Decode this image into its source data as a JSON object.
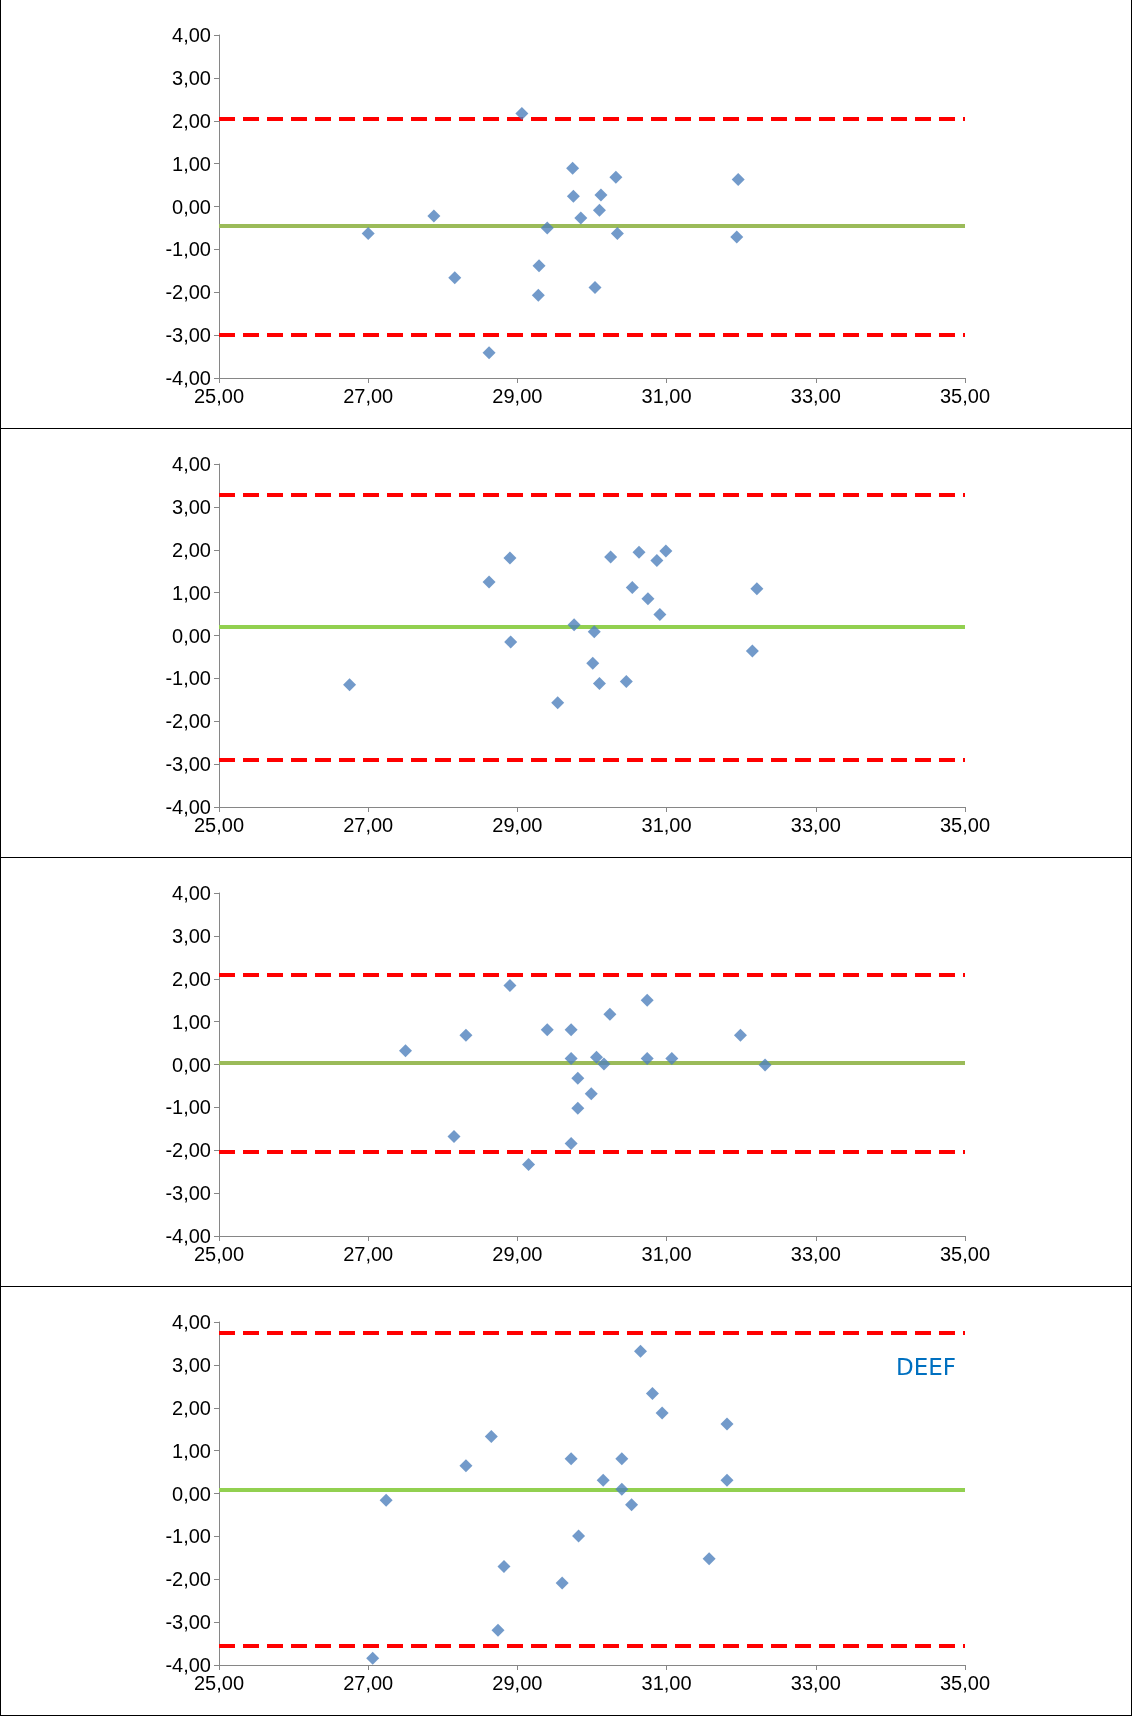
{
  "chart_data": [
    {
      "type": "scatter",
      "marker": "diamond",
      "xlim": [
        25,
        35
      ],
      "xticks": [
        {
          "value": 25,
          "label": "25,00"
        },
        {
          "value": 27,
          "label": "27,00"
        },
        {
          "value": 29,
          "label": "29,00"
        },
        {
          "value": 31,
          "label": "31,00"
        },
        {
          "value": 33,
          "label": "33,00"
        },
        {
          "value": 35,
          "label": "35,00"
        }
      ],
      "ylim": [
        -4,
        4
      ],
      "yticks": [
        {
          "value": -4,
          "label": "-4,00"
        },
        {
          "value": -3,
          "label": "-3,00"
        },
        {
          "value": -2,
          "label": "-2,00"
        },
        {
          "value": -1,
          "label": "-1,00"
        },
        {
          "value": 0,
          "label": "0,00"
        },
        {
          "value": 1,
          "label": "1,00"
        },
        {
          "value": 2,
          "label": "2,00"
        },
        {
          "value": 3,
          "label": "3,00"
        },
        {
          "value": 4,
          "label": "4,00"
        }
      ],
      "series": [
        {
          "color": "#4f81bd",
          "x": [
            27.0,
            27.88,
            28.16,
            28.62,
            29.06,
            29.29,
            29.28,
            29.4,
            29.74,
            29.75,
            29.85,
            30.04,
            30.1,
            30.12,
            30.32,
            30.34,
            31.96,
            31.94
          ],
          "values": [
            -0.63,
            -0.22,
            -1.66,
            -3.41,
            2.17,
            -1.38,
            -2.07,
            -0.5,
            0.89,
            0.24,
            -0.27,
            -1.89,
            -0.09,
            0.27,
            0.68,
            -0.63,
            0.63,
            -0.71
          ]
        }
      ],
      "ref_lines": [
        {
          "axis": "y",
          "value": 2.04,
          "color": "#ff0000",
          "line_style": "dashed"
        },
        {
          "axis": "y",
          "value": -0.46,
          "color": "#9bbb59",
          "line_style": "solid"
        },
        {
          "axis": "y",
          "value": -3.0,
          "color": "#ff0000",
          "line_style": "dashed"
        }
      ]
    },
    {
      "type": "scatter",
      "marker": "diamond",
      "xlim": [
        25,
        35
      ],
      "xticks": [
        {
          "value": 25,
          "label": "25,00"
        },
        {
          "value": 27,
          "label": "27,00"
        },
        {
          "value": 29,
          "label": "29,00"
        },
        {
          "value": 31,
          "label": "31,00"
        },
        {
          "value": 33,
          "label": "33,00"
        },
        {
          "value": 35,
          "label": "35,00"
        }
      ],
      "ylim": [
        -4,
        4
      ],
      "yticks": [
        {
          "value": -4,
          "label": "-4,00"
        },
        {
          "value": -3,
          "label": "-3,00"
        },
        {
          "value": -2,
          "label": "-2,00"
        },
        {
          "value": -1,
          "label": "-1,00"
        },
        {
          "value": 0,
          "label": "0,00"
        },
        {
          "value": 1,
          "label": "1,00"
        },
        {
          "value": 2,
          "label": "2,00"
        },
        {
          "value": 3,
          "label": "3,00"
        },
        {
          "value": 4,
          "label": "4,00"
        }
      ],
      "series": [
        {
          "color": "#4f81bd",
          "x": [
            26.75,
            28.62,
            28.9,
            28.91,
            29.54,
            29.76,
            30.03,
            30.01,
            30.1,
            30.25,
            30.46,
            30.54,
            30.63,
            30.75,
            30.87,
            30.91,
            30.99,
            32.15,
            32.21
          ],
          "values": [
            -1.15,
            1.25,
            1.81,
            -0.15,
            -1.57,
            0.25,
            0.09,
            -0.65,
            -1.12,
            1.83,
            -1.07,
            1.12,
            1.94,
            0.86,
            1.75,
            0.49,
            1.97,
            -0.36,
            1.09
          ]
        }
      ],
      "ref_lines": [
        {
          "axis": "y",
          "value": 3.28,
          "color": "#ff0000",
          "line_style": "dashed"
        },
        {
          "axis": "y",
          "value": 0.2,
          "color": "#92d050",
          "line_style": "solid"
        },
        {
          "axis": "y",
          "value": -2.89,
          "color": "#ff0000",
          "line_style": "dashed"
        }
      ]
    },
    {
      "type": "scatter",
      "marker": "diamond",
      "xlim": [
        25,
        35
      ],
      "xticks": [
        {
          "value": 25,
          "label": "25,00"
        },
        {
          "value": 27,
          "label": "27,00"
        },
        {
          "value": 29,
          "label": "29,00"
        },
        {
          "value": 31,
          "label": "31,00"
        },
        {
          "value": 33,
          "label": "33,00"
        },
        {
          "value": 35,
          "label": "35,00"
        }
      ],
      "ylim": [
        -4,
        4
      ],
      "yticks": [
        {
          "value": -4,
          "label": "-4,00"
        },
        {
          "value": -3,
          "label": "-3,00"
        },
        {
          "value": -2,
          "label": "-2,00"
        },
        {
          "value": -1,
          "label": "-1,00"
        },
        {
          "value": 0,
          "label": "0,00"
        },
        {
          "value": 1,
          "label": "1,00"
        },
        {
          "value": 2,
          "label": "2,00"
        },
        {
          "value": 3,
          "label": "3,00"
        },
        {
          "value": 4,
          "label": "4,00"
        }
      ],
      "series": [
        {
          "color": "#4f81bd",
          "x": [
            27.5,
            28.31,
            28.15,
            28.9,
            29.15,
            29.4,
            29.72,
            29.72,
            29.72,
            29.81,
            29.81,
            29.99,
            30.06,
            30.16,
            30.24,
            30.74,
            30.74,
            31.07,
            31.99,
            32.32
          ],
          "values": [
            0.32,
            0.68,
            -1.68,
            1.84,
            -2.33,
            0.81,
            0.81,
            0.14,
            -1.84,
            -0.32,
            -1.02,
            -0.68,
            0.17,
            0.01,
            1.17,
            1.5,
            0.14,
            0.14,
            0.68,
            -0.01
          ]
        }
      ],
      "ref_lines": [
        {
          "axis": "y",
          "value": 2.1,
          "color": "#ff0000",
          "line_style": "dashed"
        },
        {
          "axis": "y",
          "value": 0.04,
          "color": "#9bbb59",
          "line_style": "solid"
        },
        {
          "axis": "y",
          "value": -2.04,
          "color": "#ff0000",
          "line_style": "dashed"
        }
      ]
    },
    {
      "type": "scatter",
      "marker": "diamond",
      "annotations": [
        "DEEF"
      ],
      "xlim": [
        25,
        35
      ],
      "xticks": [
        {
          "value": 25,
          "label": "25,00"
        },
        {
          "value": 27,
          "label": "27,00"
        },
        {
          "value": 29,
          "label": "29,00"
        },
        {
          "value": 31,
          "label": "31,00"
        },
        {
          "value": 33,
          "label": "33,00"
        },
        {
          "value": 35,
          "label": "35,00"
        }
      ],
      "ylim": [
        -4,
        4
      ],
      "yticks": [
        {
          "value": -4,
          "label": "-4,00"
        },
        {
          "value": -3,
          "label": "-3,00"
        },
        {
          "value": -2,
          "label": "-2,00"
        },
        {
          "value": -1,
          "label": "-1,00"
        },
        {
          "value": 0,
          "label": "0,00"
        },
        {
          "value": 1,
          "label": "1,00"
        },
        {
          "value": 2,
          "label": "2,00"
        },
        {
          "value": 3,
          "label": "3,00"
        },
        {
          "value": 4,
          "label": "4,00"
        }
      ],
      "series": [
        {
          "color": "#4f81bd",
          "x": [
            27.06,
            27.24,
            28.31,
            28.65,
            28.74,
            28.82,
            29.6,
            29.72,
            29.82,
            30.15,
            30.4,
            30.4,
            30.53,
            30.65,
            30.81,
            30.94,
            31.57,
            31.81,
            31.81
          ],
          "values": [
            -3.84,
            -0.16,
            0.65,
            1.33,
            -3.19,
            -1.7,
            -2.09,
            0.81,
            -0.99,
            0.31,
            0.81,
            0.1,
            -0.26,
            3.32,
            2.33,
            1.88,
            -1.52,
            1.62,
            0.31
          ]
        }
      ],
      "ref_lines": [
        {
          "axis": "y",
          "value": 3.74,
          "color": "#ff0000",
          "line_style": "dashed"
        },
        {
          "axis": "y",
          "value": 0.08,
          "color": "#92d050",
          "line_style": "solid"
        },
        {
          "axis": "y",
          "value": -3.56,
          "color": "#ff0000",
          "line_style": "dashed"
        }
      ]
    }
  ]
}
